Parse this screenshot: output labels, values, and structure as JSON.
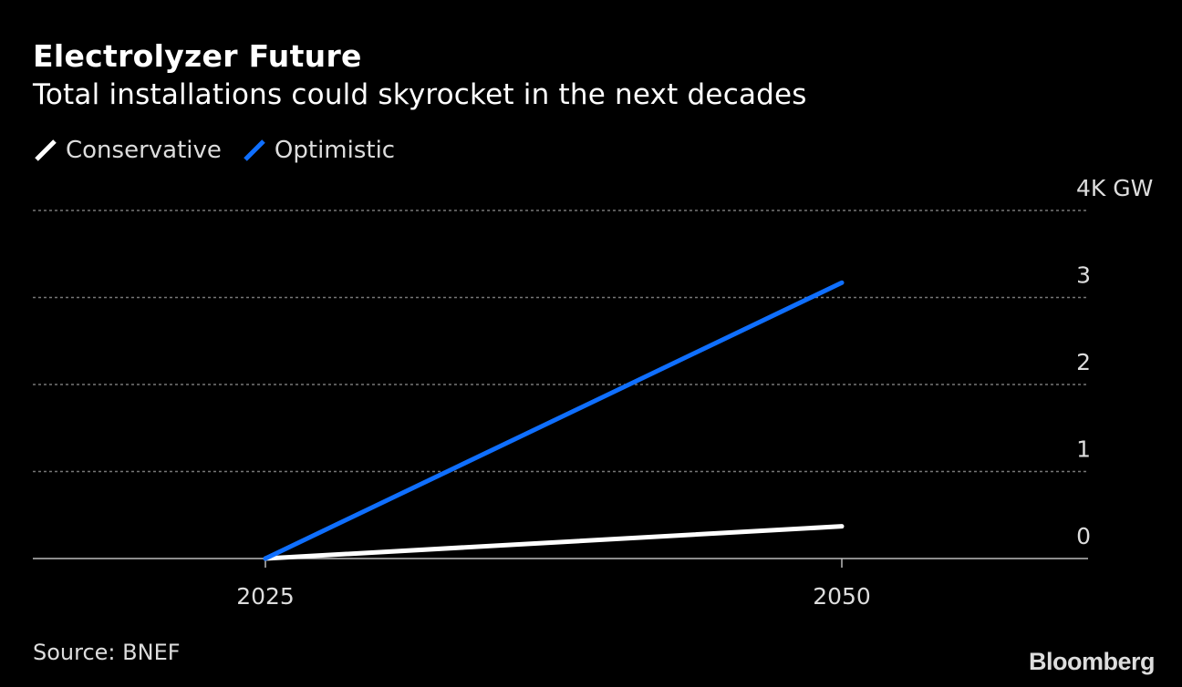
{
  "chart_data": {
    "type": "line",
    "title": "Electrolyzer Future",
    "subtitle": "Total installations could skyrocket in the next decades",
    "x": [
      2025,
      2050
    ],
    "xticks": [
      "2025",
      "2050"
    ],
    "xlim": [
      2015,
      2069
    ],
    "ylim": [
      0,
      4
    ],
    "yticks": [
      0,
      1,
      2,
      3,
      4
    ],
    "ytick_labels": [
      "0",
      "1",
      "2",
      "3",
      "4K GW"
    ],
    "yunit": "K GW",
    "grid": true,
    "y_axis_side": "right",
    "legend_position": "top-left",
    "series": [
      {
        "name": "Conservative",
        "color": "#ffffff",
        "values": [
          0,
          0.37
        ]
      },
      {
        "name": "Optimistic",
        "color": "#0f6fff",
        "values": [
          0,
          3.17
        ]
      }
    ],
    "source": "Source: BNEF",
    "brand": "Bloomberg"
  },
  "colors": {
    "background": "#000000",
    "grid": "#777777",
    "axis": "#bbbbbb",
    "text": "#dddddd"
  }
}
